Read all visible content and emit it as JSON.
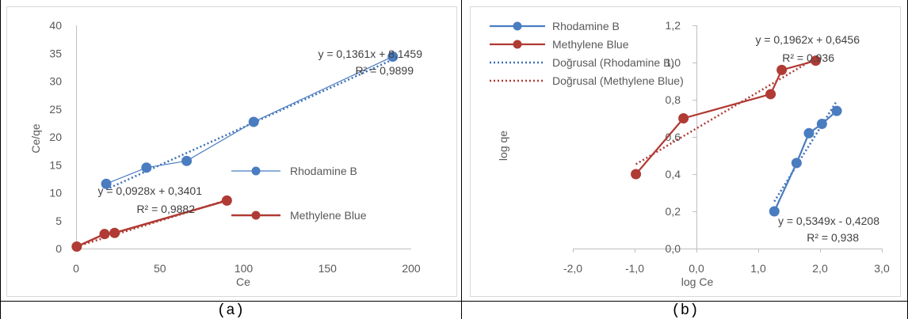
{
  "captions": {
    "left": "(a)",
    "right": "(b)"
  },
  "chart_data": [
    {
      "type": "scatter",
      "xlabel": "Ce",
      "ylabel": "Ce/qe",
      "xlim": [
        0,
        200
      ],
      "ylim": [
        0,
        40
      ],
      "xticks": [
        0,
        50,
        100,
        150,
        200
      ],
      "yticks": [
        0,
        5,
        10,
        15,
        20,
        25,
        30,
        35,
        40
      ],
      "xtick_labels": [
        "0",
        "50",
        "100",
        "150",
        "200"
      ],
      "ytick_labels": [
        "0",
        "5",
        "10",
        "15",
        "20",
        "25",
        "30",
        "35",
        "40"
      ],
      "grid": false,
      "legend_position": "right",
      "series": [
        {
          "name": "Rhodamine B",
          "color": "#4a7cc0",
          "line_width": "thin",
          "points": [
            [
              18,
              11.6
            ],
            [
              42,
              14.5
            ],
            [
              66,
              15.7
            ],
            [
              106,
              22.7
            ],
            [
              189,
              34.4
            ]
          ],
          "trendline": {
            "slope": 0.1361,
            "intercept": 8.1459,
            "x_range": [
              18,
              189
            ],
            "color": "#3c6fb4"
          },
          "equation": "y = 0,1361x  + 8,1459",
          "r2": "R² = 0,9899"
        },
        {
          "name": "Methylene Blue",
          "color": "#b03a34",
          "line_width": "thick",
          "points": [
            [
              0.4,
              0.35
            ],
            [
              17,
              2.6
            ],
            [
              23,
              2.8
            ],
            [
              90,
              8.6
            ]
          ],
          "trendline": {
            "slope": 0.0928,
            "intercept": 0.3401,
            "x_range": [
              0.4,
              90
            ],
            "color": "#b03a34"
          },
          "equation": "y = 0,0928x  + 0,3401",
          "r2": "R² = 0,9882"
        }
      ]
    },
    {
      "type": "scatter",
      "xlabel": "log Ce",
      "ylabel": "log qe",
      "xlim": [
        -2.0,
        3.0
      ],
      "ylim": [
        0.0,
        1.2
      ],
      "xticks": [
        -2.0,
        -1.0,
        0.0,
        1.0,
        2.0,
        3.0
      ],
      "yticks": [
        0.0,
        0.2,
        0.4,
        0.6,
        0.8,
        1.0,
        1.2
      ],
      "xtick_labels": [
        "-2,0",
        "-1,0",
        "0,0",
        "1,0",
        "2,0",
        "3,0"
      ],
      "ytick_labels": [
        "0,0",
        "0,2",
        "0,4",
        "0,6",
        "0,8",
        "1,0",
        "1,2"
      ],
      "grid": false,
      "legend_position": "top-left",
      "legend": [
        "Rhodamine B",
        "Methylene Blue",
        "Doğrusal (Rhodamine B)",
        "Doğrusal (Methylene Blue)"
      ],
      "series": [
        {
          "name": "Rhodamine B",
          "color": "#4a7cc0",
          "points": [
            [
              1.26,
              0.2
            ],
            [
              1.62,
              0.46
            ],
            [
              1.82,
              0.62
            ],
            [
              2.03,
              0.67
            ],
            [
              2.27,
              0.74
            ]
          ],
          "trendline": {
            "slope": 0.5349,
            "intercept": -0.4208,
            "x_range": [
              1.26,
              2.27
            ],
            "color": "#3c6fb4"
          },
          "equation": "y = 0,5349x  - 0,4208",
          "r2": "R² = 0,938"
        },
        {
          "name": "Methylene Blue",
          "color": "#b03a34",
          "points": [
            [
              -0.98,
              0.4
            ],
            [
              -0.21,
              0.7
            ],
            [
              1.2,
              0.83
            ],
            [
              1.38,
              0.96
            ],
            [
              1.93,
              1.01
            ]
          ],
          "trendline": {
            "slope": 0.1962,
            "intercept": 0.6456,
            "x_range": [
              -0.98,
              1.93
            ],
            "color": "#b03a34"
          },
          "equation": "y = 0,1962x  + 0,6456",
          "r2": "R² = 0,936"
        }
      ]
    }
  ]
}
